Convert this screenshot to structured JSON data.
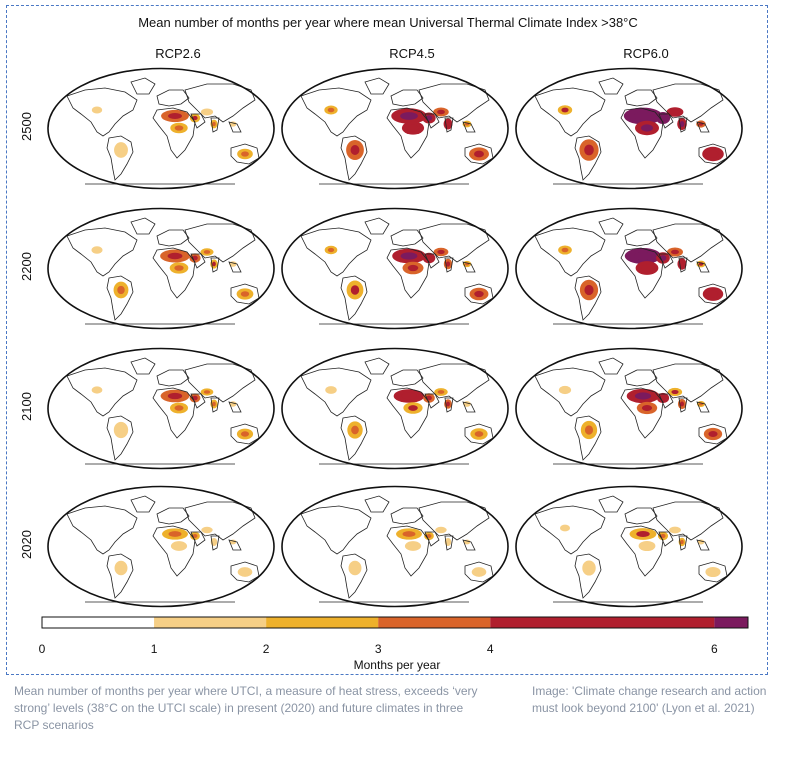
{
  "figure": {
    "title": "Mean number of months per year where mean Universal Thermal Climate Index >38°C",
    "scenarios": [
      "RCP2.6",
      "RCP4.5",
      "RCP6.0"
    ],
    "years": [
      "2500",
      "2200",
      "2100",
      "2020"
    ]
  },
  "colorbar": {
    "label": "Months per year",
    "ticks": [
      "0",
      "1",
      "2",
      "3",
      "4",
      "6"
    ],
    "bins": [
      {
        "from": 0,
        "to": 1,
        "color": "#ffffff"
      },
      {
        "from": 1,
        "to": 2,
        "color": "#f6cf86"
      },
      {
        "from": 2,
        "to": 3,
        "color": "#eeb12c"
      },
      {
        "from": 3,
        "to": 4,
        "color": "#d9642a"
      },
      {
        "from": 4,
        "to": 6,
        "color": "#b01f2e"
      },
      {
        "from": 6,
        "to": 6.3,
        "color": "#7b1a5e"
      }
    ]
  },
  "panel_intensity": [
    [
      0.45,
      0.85,
      1.0
    ],
    [
      0.55,
      0.75,
      0.9
    ],
    [
      0.5,
      0.6,
      0.7
    ],
    [
      0.35,
      0.35,
      0.4
    ]
  ],
  "caption": "Mean number of months per year where UTCI, a measure of heat stress, exceeds ‘very strong’ levels (38°C on the UTCI scale) in present (2020) and future climates in three RCP scenarios",
  "credit": "Image: 'Climate change research and action must look beyond 2100' (Lyon et al. 2021)"
}
